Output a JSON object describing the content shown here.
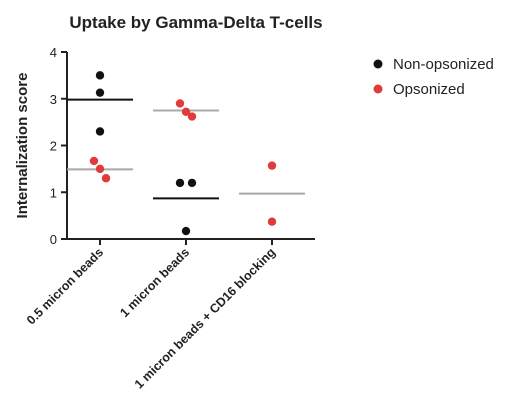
{
  "chart_data": {
    "type": "scatter",
    "title": "Uptake by Gamma-Delta T-cells",
    "xlabel": "",
    "ylabel": "Internalization score",
    "ylim": [
      0,
      4
    ],
    "yticks": [
      "0",
      "1",
      "2",
      "3",
      "4"
    ],
    "categories": [
      "0.5 micron beads",
      "1 micron beads",
      "1 micron beads + CD16 blocking"
    ],
    "legend_position": "top-right",
    "series": [
      {
        "name": "Non-opsonized",
        "color": "#111111",
        "mean_color": "#111111",
        "points": [
          {
            "category": 0,
            "y": 3.5
          },
          {
            "category": 0,
            "y": 3.13
          },
          {
            "category": 0,
            "y": 2.3
          },
          {
            "category": 1,
            "y": 1.2
          },
          {
            "category": 1,
            "y": 1.2
          },
          {
            "category": 1,
            "y": 0.17
          }
        ],
        "means": [
          {
            "category": 0,
            "y": 2.98
          },
          {
            "category": 1,
            "y": 0.87
          }
        ]
      },
      {
        "name": "Opsonized",
        "color": "#e03a3a",
        "mean_color": "#a8a8a8",
        "points": [
          {
            "category": 0,
            "y": 1.67
          },
          {
            "category": 0,
            "y": 1.5
          },
          {
            "category": 0,
            "y": 1.3
          },
          {
            "category": 1,
            "y": 2.9
          },
          {
            "category": 1,
            "y": 2.72
          },
          {
            "category": 1,
            "y": 2.62
          },
          {
            "category": 2,
            "y": 1.57
          },
          {
            "category": 2,
            "y": 0.37
          }
        ],
        "means": [
          {
            "category": 0,
            "y": 1.49
          },
          {
            "category": 1,
            "y": 2.75
          },
          {
            "category": 2,
            "y": 0.97
          }
        ]
      }
    ]
  }
}
